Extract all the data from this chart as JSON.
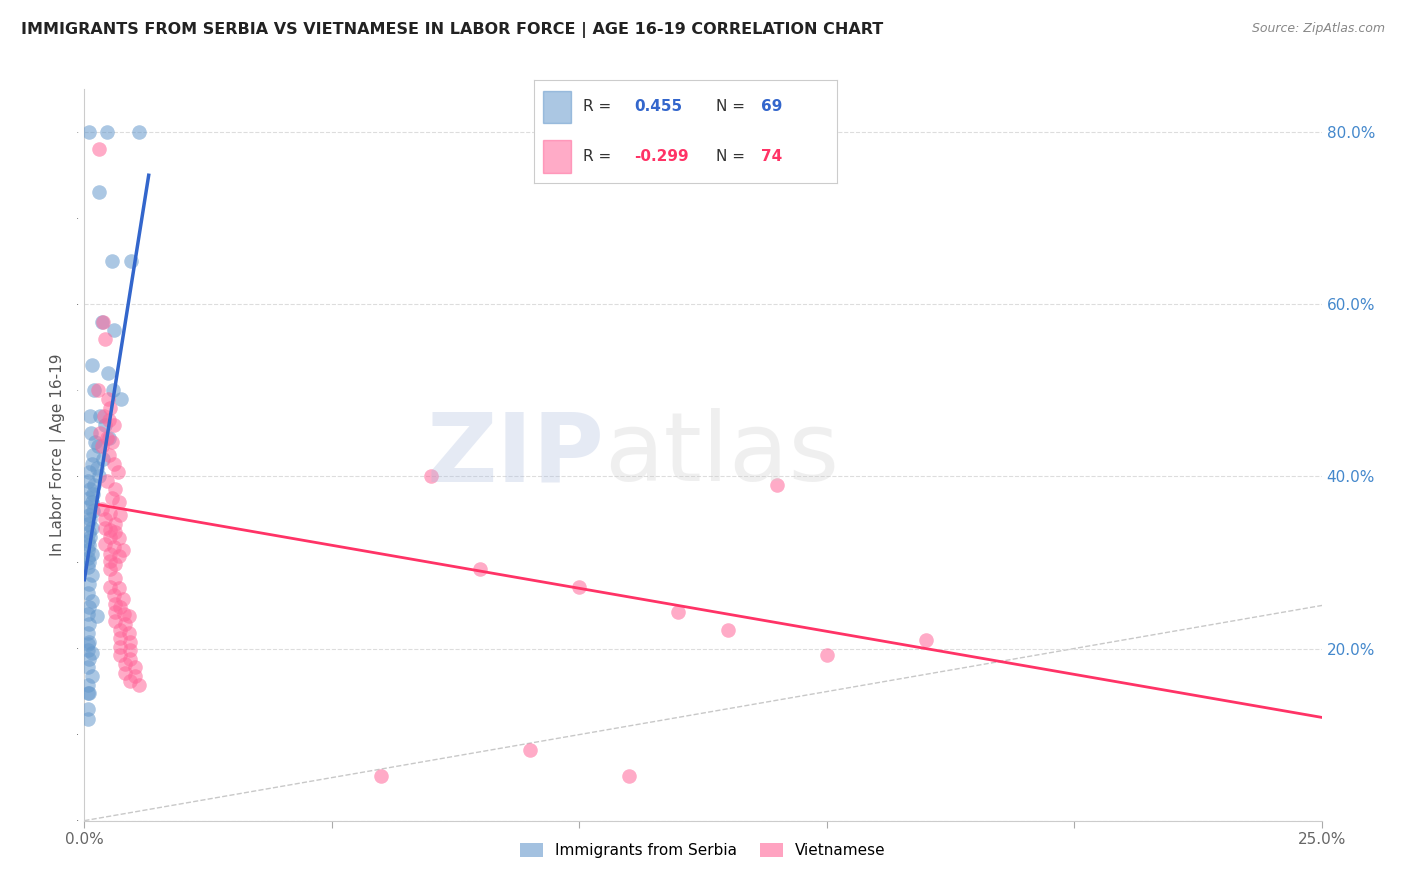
{
  "title": "IMMIGRANTS FROM SERBIA VS VIETNAMESE IN LABOR FORCE | AGE 16-19 CORRELATION CHART",
  "source": "Source: ZipAtlas.com",
  "ylabel": "In Labor Force | Age 16-19",
  "xlim": [
    0.0,
    0.25
  ],
  "ylim": [
    0.0,
    0.85
  ],
  "x_ticks": [
    0.0,
    0.05,
    0.1,
    0.15,
    0.2,
    0.25
  ],
  "x_tick_labels": [
    "0.0%",
    "",
    "",
    "",
    "",
    "25.0%"
  ],
  "y_ticks": [
    0.0,
    0.2,
    0.4,
    0.6,
    0.8
  ],
  "y_tick_labels": [
    "",
    "20.0%",
    "40.0%",
    "60.0%",
    "80.0%"
  ],
  "serbia_color": "#6699CC",
  "vietnamese_color": "#FF6699",
  "serbia_line_color": "#3366CC",
  "vietnamese_line_color": "#FF3366",
  "diagonal_color": "#BBBBBB",
  "grid_color": "#DDDDDD",
  "background_color": "#FFFFFF",
  "right_yaxis_color": "#4488CC",
  "serbia_scatter": [
    [
      0.001,
      0.8
    ],
    [
      0.0045,
      0.8
    ],
    [
      0.011,
      0.8
    ],
    [
      0.003,
      0.73
    ],
    [
      0.0055,
      0.65
    ],
    [
      0.0095,
      0.65
    ],
    [
      0.0035,
      0.58
    ],
    [
      0.006,
      0.57
    ],
    [
      0.0015,
      0.53
    ],
    [
      0.0048,
      0.52
    ],
    [
      0.002,
      0.5
    ],
    [
      0.0058,
      0.5
    ],
    [
      0.0075,
      0.49
    ],
    [
      0.0012,
      0.47
    ],
    [
      0.0032,
      0.47
    ],
    [
      0.0042,
      0.46
    ],
    [
      0.0014,
      0.45
    ],
    [
      0.005,
      0.445
    ],
    [
      0.0022,
      0.44
    ],
    [
      0.0028,
      0.435
    ],
    [
      0.0018,
      0.425
    ],
    [
      0.0038,
      0.42
    ],
    [
      0.0015,
      0.415
    ],
    [
      0.0025,
      0.41
    ],
    [
      0.001,
      0.405
    ],
    [
      0.003,
      0.4
    ],
    [
      0.0008,
      0.395
    ],
    [
      0.002,
      0.39
    ],
    [
      0.0012,
      0.385
    ],
    [
      0.0018,
      0.38
    ],
    [
      0.001,
      0.375
    ],
    [
      0.0015,
      0.37
    ],
    [
      0.0008,
      0.365
    ],
    [
      0.0018,
      0.36
    ],
    [
      0.001,
      0.355
    ],
    [
      0.0012,
      0.35
    ],
    [
      0.0008,
      0.345
    ],
    [
      0.0015,
      0.34
    ],
    [
      0.001,
      0.335
    ],
    [
      0.0012,
      0.33
    ],
    [
      0.0008,
      0.325
    ],
    [
      0.001,
      0.32
    ],
    [
      0.0008,
      0.315
    ],
    [
      0.0015,
      0.31
    ],
    [
      0.0008,
      0.305
    ],
    [
      0.001,
      0.3
    ],
    [
      0.0008,
      0.295
    ],
    [
      0.0015,
      0.285
    ],
    [
      0.001,
      0.275
    ],
    [
      0.0008,
      0.265
    ],
    [
      0.0015,
      0.255
    ],
    [
      0.001,
      0.248
    ],
    [
      0.0008,
      0.24
    ],
    [
      0.0025,
      0.238
    ],
    [
      0.001,
      0.228
    ],
    [
      0.0008,
      0.218
    ],
    [
      0.001,
      0.208
    ],
    [
      0.0008,
      0.205
    ],
    [
      0.0008,
      0.198
    ],
    [
      0.0015,
      0.195
    ],
    [
      0.001,
      0.188
    ],
    [
      0.0008,
      0.178
    ],
    [
      0.0015,
      0.168
    ],
    [
      0.0008,
      0.158
    ],
    [
      0.001,
      0.148
    ],
    [
      0.0008,
      0.13
    ],
    [
      0.0008,
      0.118
    ],
    [
      0.0008,
      0.148
    ]
  ],
  "vietnamese_scatter": [
    [
      0.003,
      0.78
    ],
    [
      0.0038,
      0.58
    ],
    [
      0.0042,
      0.56
    ],
    [
      0.0028,
      0.5
    ],
    [
      0.0048,
      0.49
    ],
    [
      0.0052,
      0.48
    ],
    [
      0.004,
      0.47
    ],
    [
      0.005,
      0.465
    ],
    [
      0.006,
      0.46
    ],
    [
      0.0032,
      0.45
    ],
    [
      0.0045,
      0.445
    ],
    [
      0.0055,
      0.44
    ],
    [
      0.0035,
      0.435
    ],
    [
      0.005,
      0.425
    ],
    [
      0.006,
      0.415
    ],
    [
      0.0068,
      0.405
    ],
    [
      0.0045,
      0.395
    ],
    [
      0.0062,
      0.385
    ],
    [
      0.0055,
      0.375
    ],
    [
      0.007,
      0.37
    ],
    [
      0.0035,
      0.362
    ],
    [
      0.0052,
      0.358
    ],
    [
      0.0072,
      0.355
    ],
    [
      0.0042,
      0.35
    ],
    [
      0.0062,
      0.345
    ],
    [
      0.0042,
      0.34
    ],
    [
      0.0052,
      0.338
    ],
    [
      0.0062,
      0.335
    ],
    [
      0.0052,
      0.33
    ],
    [
      0.007,
      0.328
    ],
    [
      0.0042,
      0.322
    ],
    [
      0.006,
      0.318
    ],
    [
      0.0078,
      0.315
    ],
    [
      0.0052,
      0.31
    ],
    [
      0.007,
      0.308
    ],
    [
      0.0052,
      0.302
    ],
    [
      0.0062,
      0.298
    ],
    [
      0.0052,
      0.292
    ],
    [
      0.0062,
      0.282
    ],
    [
      0.0052,
      0.272
    ],
    [
      0.007,
      0.27
    ],
    [
      0.006,
      0.262
    ],
    [
      0.0078,
      0.258
    ],
    [
      0.0062,
      0.252
    ],
    [
      0.0072,
      0.248
    ],
    [
      0.0062,
      0.242
    ],
    [
      0.008,
      0.24
    ],
    [
      0.009,
      0.238
    ],
    [
      0.0062,
      0.232
    ],
    [
      0.0082,
      0.228
    ],
    [
      0.0072,
      0.222
    ],
    [
      0.009,
      0.218
    ],
    [
      0.0072,
      0.212
    ],
    [
      0.0092,
      0.208
    ],
    [
      0.0072,
      0.202
    ],
    [
      0.0092,
      0.198
    ],
    [
      0.0072,
      0.192
    ],
    [
      0.0092,
      0.188
    ],
    [
      0.0082,
      0.182
    ],
    [
      0.0102,
      0.178
    ],
    [
      0.0082,
      0.172
    ],
    [
      0.0102,
      0.168
    ],
    [
      0.0092,
      0.162
    ],
    [
      0.011,
      0.158
    ],
    [
      0.14,
      0.39
    ],
    [
      0.13,
      0.222
    ],
    [
      0.17,
      0.21
    ],
    [
      0.15,
      0.192
    ],
    [
      0.08,
      0.292
    ],
    [
      0.1,
      0.272
    ],
    [
      0.07,
      0.4
    ],
    [
      0.12,
      0.242
    ],
    [
      0.11,
      0.052
    ],
    [
      0.09,
      0.082
    ],
    [
      0.06,
      0.052
    ]
  ]
}
